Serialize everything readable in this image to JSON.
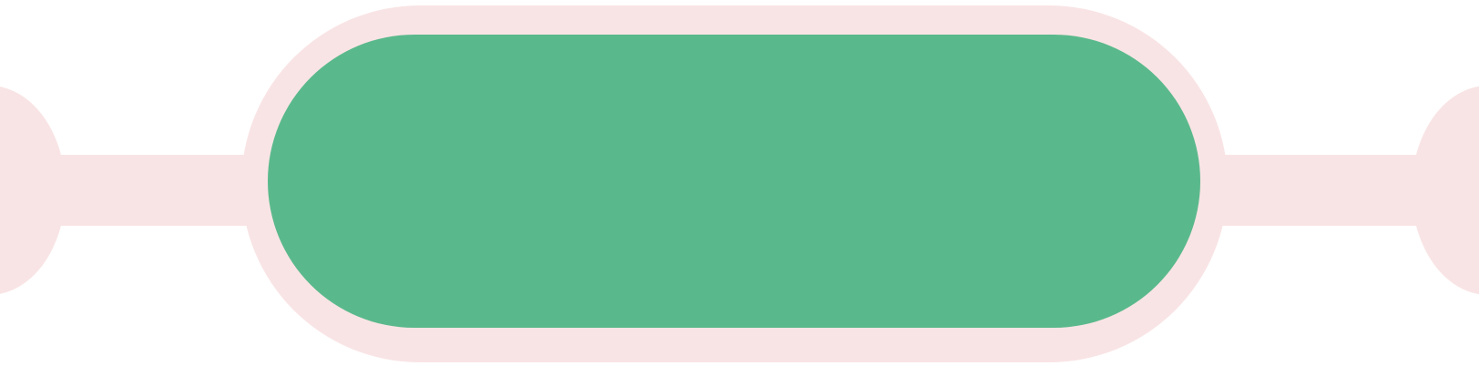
{
  "colors": {
    "halo": "#f9e4e5",
    "fill": "#5ab98c",
    "background": "#ffffff"
  },
  "control": {
    "label": ""
  }
}
